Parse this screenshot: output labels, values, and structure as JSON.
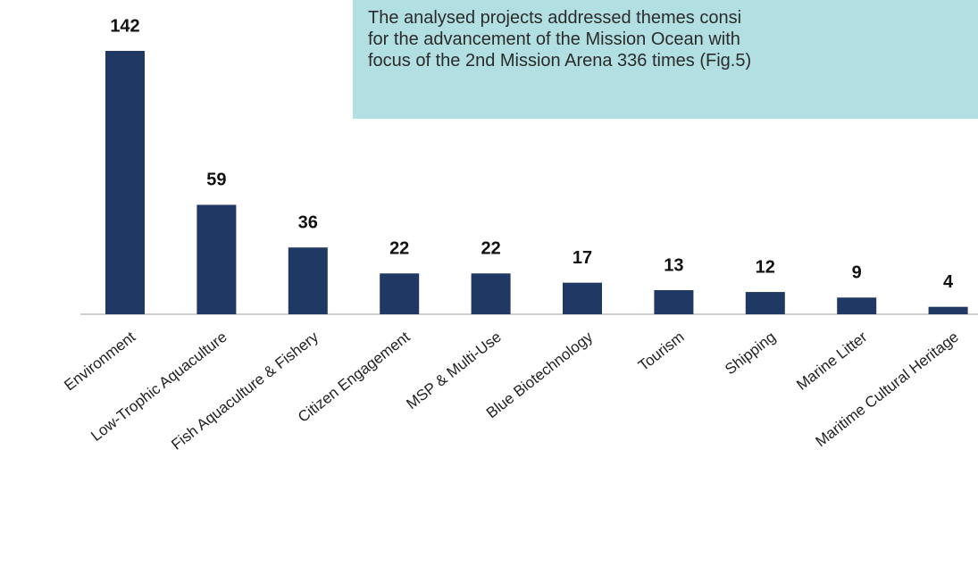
{
  "chart_data": {
    "type": "bar",
    "categories": [
      "Environment",
      "Low-Trophic Aquaculture",
      "Fish Aquaculture & Fishery",
      "Citizen Engagement",
      "MSP & Multi-Use",
      "Blue Biotechnology",
      "Tourism",
      "Shipping",
      "Marine Litter",
      "Maritime Cultural Heritage"
    ],
    "values": [
      142,
      59,
      36,
      22,
      22,
      17,
      13,
      12,
      9,
      4
    ],
    "color": "#1f3864",
    "ylim": [
      0,
      142
    ],
    "annotation": [
      "The analysed projects addressed themes consi",
      "for the advancement of the Mission Ocean with",
      "focus of the 2nd Mission Arena 336 times (Fig.5)"
    ]
  }
}
